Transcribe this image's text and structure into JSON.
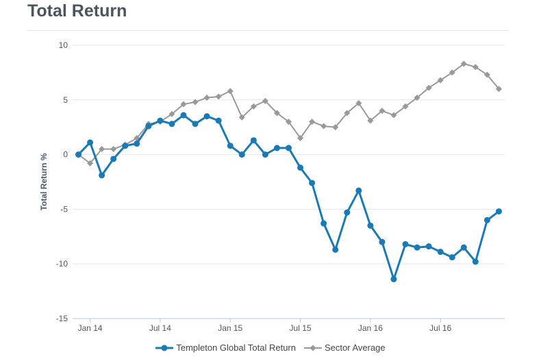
{
  "title": "Total Return",
  "chart_data": {
    "type": "line",
    "ylabel": "Total Return %",
    "ylim": [
      -15,
      10
    ],
    "yticks": [
      -15,
      -10,
      -5,
      0,
      5,
      10
    ],
    "xlim": [
      -0.5,
      36.5
    ],
    "xticks": [
      {
        "label": "Jan 14",
        "pos": 1
      },
      {
        "label": "Jul 14",
        "pos": 7
      },
      {
        "label": "Jan 15",
        "pos": 13
      },
      {
        "label": "Jul 15",
        "pos": 19
      },
      {
        "label": "Jan 16",
        "pos": 25
      },
      {
        "label": "Jul 16",
        "pos": 31
      }
    ],
    "grid": true,
    "legend_position": "bottom",
    "series": [
      {
        "name": "Templeton Global Total Return",
        "color": "#1a7ab5",
        "marker": "circle",
        "values": [
          0,
          1.1,
          -1.9,
          -0.4,
          0.8,
          1.0,
          2.6,
          3.1,
          2.8,
          3.6,
          2.8,
          3.5,
          3.1,
          0.8,
          0.0,
          1.3,
          0.0,
          0.6,
          0.6,
          -1.2,
          -2.6,
          -6.3,
          -8.7,
          -5.3,
          -3.3,
          -6.5,
          -8.0,
          -11.4,
          -8.2,
          -8.5,
          -8.4,
          -8.9,
          -9.4,
          -8.5,
          -9.8,
          -6.0,
          -5.2
        ]
      },
      {
        "name": "Sector Average",
        "color": "#999999",
        "marker": "diamond",
        "values": [
          0,
          -0.8,
          0.5,
          0.5,
          0.9,
          1.5,
          2.8,
          3.0,
          3.7,
          4.6,
          4.8,
          5.2,
          5.3,
          5.8,
          3.4,
          4.4,
          4.9,
          3.8,
          3.0,
          1.5,
          3.0,
          2.6,
          2.5,
          3.8,
          4.7,
          3.1,
          4.0,
          3.6,
          4.4,
          5.2,
          6.1,
          6.8,
          7.5,
          8.3,
          8.0,
          7.3,
          6.0
        ]
      }
    ]
  }
}
